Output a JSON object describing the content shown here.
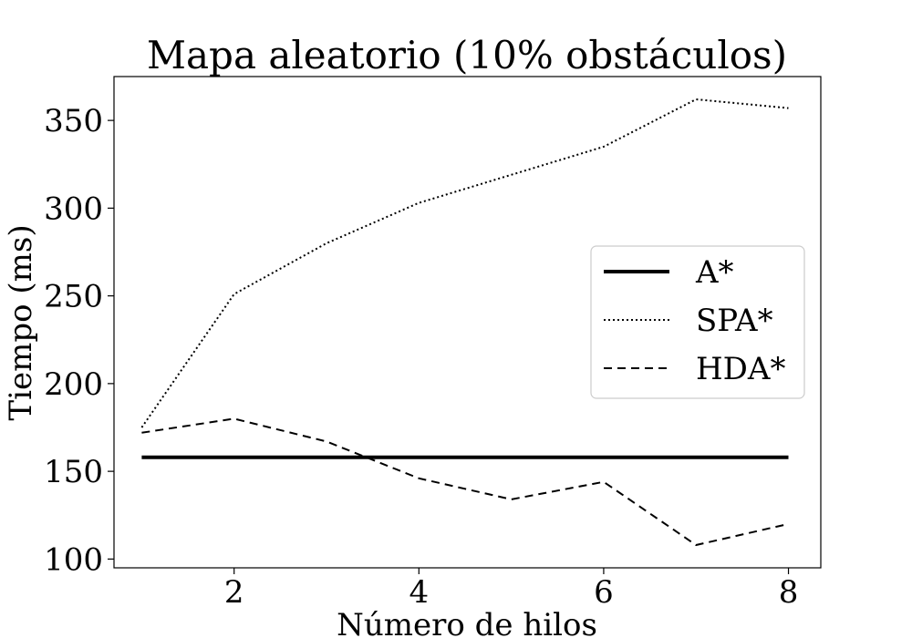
{
  "chart_data": {
    "type": "line",
    "title": "Mapa aleatorio (10% obstáculos)",
    "xlabel": "Número de hilos",
    "ylabel": "Tiempo (ms)",
    "xlim": [
      0.7,
      8.35
    ],
    "ylim": [
      95,
      375
    ],
    "xticks": [
      2,
      4,
      6,
      8
    ],
    "yticks": [
      100,
      150,
      200,
      250,
      300,
      350
    ],
    "grid": false,
    "legend_position": "center-right",
    "x": [
      1,
      2,
      3,
      4,
      5,
      6,
      7,
      8
    ],
    "series": [
      {
        "name": "A*",
        "style": "solid",
        "color": "#000000",
        "values": [
          158,
          158,
          158,
          158,
          158,
          158,
          158,
          158
        ]
      },
      {
        "name": "SPA*",
        "style": "dotted",
        "color": "#000000",
        "values": [
          175,
          251,
          280,
          303,
          319,
          335,
          362,
          357
        ]
      },
      {
        "name": "HDA*",
        "style": "dashed",
        "color": "#000000",
        "values": [
          172,
          180,
          167,
          146,
          134,
          144,
          108,
          120
        ]
      }
    ]
  }
}
